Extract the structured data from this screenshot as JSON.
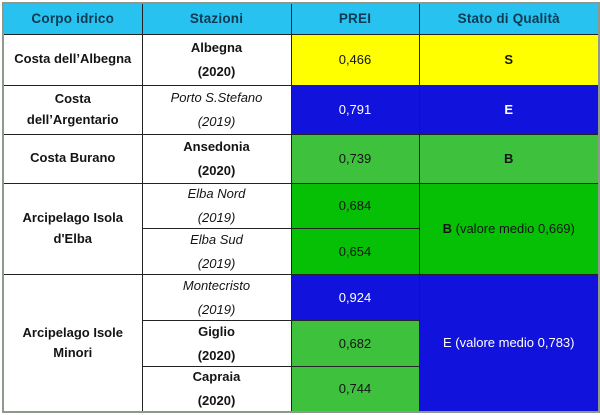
{
  "header": {
    "columns": [
      "Corpo idrico",
      "Stazioni",
      "PREI",
      "Stato di Qualità"
    ]
  },
  "groups": [
    {
      "corpo": "Costa dell’Albegna",
      "stations": [
        {
          "name": "Albegna",
          "year": "(2020)",
          "prei": "0,466"
        }
      ],
      "status_label": "S",
      "status_note": "",
      "color": "#ffff00"
    },
    {
      "corpo": "Costa dell’Argentario",
      "stations": [
        {
          "name": "Porto S.Stefano",
          "year": "(2019)",
          "prei": "0,791"
        }
      ],
      "status_label": "E",
      "status_note": "",
      "color": "#1212dd"
    },
    {
      "corpo": "Costa Burano",
      "stations": [
        {
          "name": "Ansedonia",
          "year": "(2020)",
          "prei": "0,739"
        }
      ],
      "status_label": "B",
      "status_note": "",
      "color": "#3ec23e"
    },
    {
      "corpo": "Arcipelago Isola d'Elba",
      "stations": [
        {
          "name": "Elba Nord",
          "year": "(2019)",
          "prei": "0,684"
        },
        {
          "name": "Elba Sud",
          "year": "(2019)",
          "prei": "0,654"
        }
      ],
      "status_label": "B",
      "status_note": " (valore medio 0,669)",
      "color": "#06c006"
    },
    {
      "corpo": "Arcipelago Isole Minori",
      "stations": [
        {
          "name": "Montecristo",
          "year": "(2019)",
          "prei": "0,924"
        },
        {
          "name": "Giglio",
          "year": "(2020)",
          "prei": "0,682"
        },
        {
          "name": "Capraia",
          "year": "(2020)",
          "prei": "0,744"
        }
      ],
      "status_label": "E",
      "status_note": " (valore medio 0,783)",
      "color": "#1212dd"
    }
  ],
  "colors": {
    "header_bg": "#27c2f0",
    "header_text": "#0e3a52",
    "status_yellow": "#ffff00",
    "status_blue": "#1212dd",
    "status_green_light": "#3ec23e",
    "status_green_bright": "#06c006",
    "grid_line": "#232323",
    "text_dark": "#141414",
    "text_light": "#ffffff"
  },
  "chart_data": {
    "type": "table",
    "title": "Stato di Qualità PREI per corpo idrico",
    "columns": [
      "Corpo idrico",
      "Stazioni",
      "PREI",
      "Stato di Qualità"
    ],
    "rows": [
      [
        "Costa dell’Albegna",
        "Albegna (2020)",
        "0,466",
        "S"
      ],
      [
        "Costa dell’Argentario",
        "Porto S.Stefano (2019)",
        "0,791",
        "E"
      ],
      [
        "Costa Burano",
        "Ansedonia (2020)",
        "0,739",
        "B"
      ],
      [
        "Arcipelago Isola d'Elba",
        "Elba Nord (2019)",
        "0,684",
        "B (valore medio 0,669)"
      ],
      [
        "Arcipelago Isola d'Elba",
        "Elba Sud (2019)",
        "0,654",
        "B (valore medio 0,669)"
      ],
      [
        "Arcipelago Isole Minori",
        "Montecristo (2019)",
        "0,924",
        "E (valore medio 0,783)"
      ],
      [
        "Arcipelago Isole Minori",
        "Giglio (2020)",
        "0,682",
        "E (valore medio 0,783)"
      ],
      [
        "Arcipelago Isole Minori",
        "Capraia (2020)",
        "0,744",
        "E (valore medio 0,783)"
      ]
    ],
    "numeric_values": {
      "PREI": [
        0.466,
        0.791,
        0.739,
        0.684,
        0.654,
        0.924,
        0.682,
        0.744
      ],
      "medie": {
        "Arcipelago Isola d'Elba": 0.669,
        "Arcipelago Isole Minori": 0.783
      }
    },
    "legend_colors": {
      "S": "yellow",
      "E": "blue",
      "B": "green"
    }
  }
}
